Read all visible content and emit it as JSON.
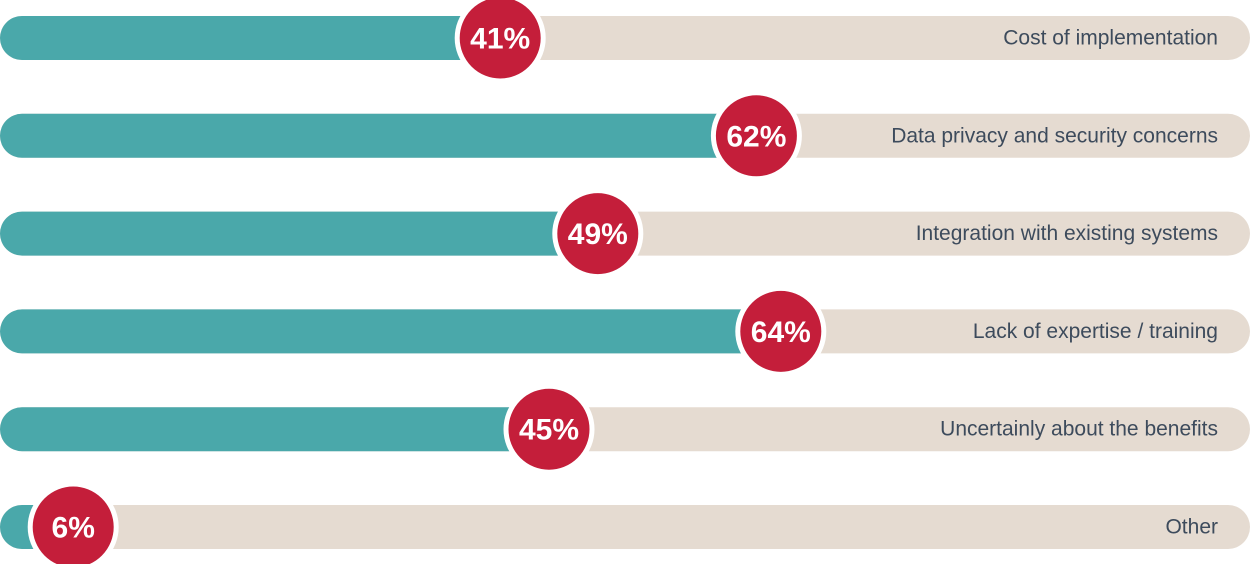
{
  "chart_data": {
    "type": "bar",
    "categories": [
      "Cost of implementation",
      "Data privacy and security concerns",
      "Integration with existing systems",
      "Lack of expertise / training",
      "Uncertainly about the benefits",
      "Other"
    ],
    "values": [
      41,
      62,
      49,
      64,
      45,
      6
    ],
    "value_labels": [
      "41%",
      "62%",
      "49%",
      "64%",
      "45%",
      "6%"
    ],
    "xlim": [
      0,
      100
    ],
    "color": "#4aa8aa",
    "track_color": "#e5dbd1",
    "label_color": "#c41e3a"
  }
}
